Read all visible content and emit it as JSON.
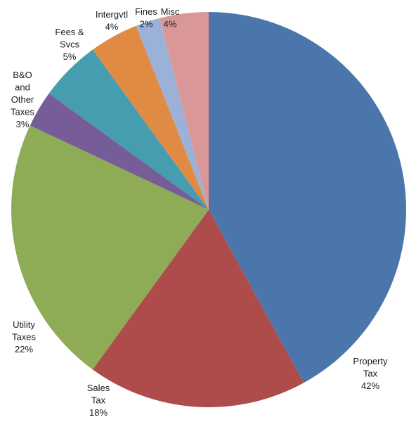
{
  "chart_data": {
    "type": "pie",
    "slices": [
      {
        "label": [
          "Property",
          "Tax"
        ],
        "display": "42%",
        "value": 42,
        "color": "#4a76ab"
      },
      {
        "label": [
          "Sales",
          "Tax"
        ],
        "display": "18%",
        "value": 18,
        "color": "#ad4c4a"
      },
      {
        "label": [
          "Utility",
          "Taxes"
        ],
        "display": "22%",
        "value": 22,
        "color": "#8eab56"
      },
      {
        "label": [
          "B&O",
          "and",
          "Other",
          "Taxes"
        ],
        "display": "3%",
        "value": 3,
        "color": "#775d98"
      },
      {
        "label": [
          "Fees &",
          "Svcs"
        ],
        "display": "5%",
        "value": 5,
        "color": "#459daf"
      },
      {
        "label": [
          "Intergvtl"
        ],
        "display": "4%",
        "value": 4,
        "color": "#e08b43"
      },
      {
        "label": [
          "Fines"
        ],
        "display": "2%",
        "value": 2,
        "color": "#9cb1d7"
      },
      {
        "label": [
          "Misc"
        ],
        "display": "4%",
        "value": 4,
        "color": "#d99797"
      }
    ]
  }
}
